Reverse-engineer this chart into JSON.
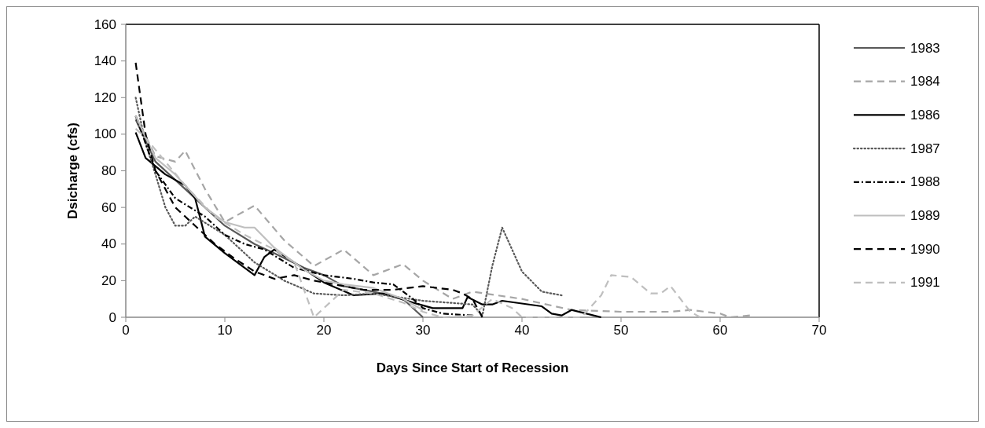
{
  "chart_data": {
    "type": "line",
    "xlabel": "Days Since Start of Recession",
    "ylabel": "Dsicharge (cfs)",
    "xlim": [
      0,
      70
    ],
    "xticks": [
      0,
      10,
      20,
      30,
      40,
      50,
      60,
      70
    ],
    "ylim": [
      0,
      160
    ],
    "yticks": [
      0,
      20,
      40,
      60,
      80,
      100,
      120,
      140,
      160
    ],
    "grid": false,
    "legend": "right",
    "series": [
      {
        "name": "1983",
        "color": "#595959",
        "line_style": "solid",
        "x": [
          1,
          3,
          5,
          8,
          10,
          13,
          15,
          18,
          20,
          22,
          25,
          28,
          30
        ],
        "values": [
          108,
          85,
          75,
          60,
          50,
          40,
          35,
          27,
          23,
          17,
          14,
          10,
          0
        ]
      },
      {
        "name": "1984",
        "color": "#a6a6a6",
        "line_style": "dashed",
        "x": [
          1,
          3,
          5,
          6,
          8,
          10,
          13,
          16,
          19,
          22,
          25,
          28,
          30,
          33,
          35,
          40,
          45,
          50,
          55,
          57,
          60,
          61,
          63
        ],
        "values": [
          110,
          88,
          85,
          91,
          70,
          52,
          61,
          42,
          28,
          37,
          23,
          29,
          20,
          10,
          14,
          10,
          4,
          3,
          3,
          4,
          2,
          0,
          1
        ]
      },
      {
        "name": "1986",
        "color": "#000000",
        "line_style": "solid",
        "x": [
          1,
          2,
          4,
          6,
          7,
          8,
          10,
          13,
          14,
          15,
          17,
          20,
          23,
          26,
          29,
          31,
          34,
          34.5,
          36,
          37,
          38,
          42,
          43,
          44,
          45,
          48
        ],
        "values": [
          101,
          87,
          78,
          72,
          65,
          44,
          35,
          23,
          33,
          37,
          30,
          19,
          12,
          13,
          8,
          5,
          5,
          11,
          7,
          7,
          9,
          6,
          2,
          1,
          4,
          0
        ]
      },
      {
        "name": "1987",
        "color": "#595959",
        "line_style": "dotted",
        "x": [
          1,
          2,
          3,
          4,
          5,
          6,
          7,
          10,
          13,
          16,
          19,
          22,
          25,
          30,
          35,
          36,
          37,
          38,
          40,
          42,
          44
        ],
        "values": [
          120,
          95,
          78,
          60,
          50,
          50,
          55,
          45,
          30,
          20,
          13,
          12,
          13,
          9,
          7,
          1,
          28,
          49,
          25,
          14,
          12
        ]
      },
      {
        "name": "1988",
        "color": "#000000",
        "line_style": "dashdot",
        "x": [
          1,
          3,
          5,
          8,
          10,
          12,
          14,
          17,
          20,
          23,
          25,
          27,
          29,
          30,
          32,
          35
        ],
        "values": [
          110,
          80,
          65,
          55,
          45,
          40,
          37,
          27,
          23,
          21,
          19,
          18,
          10,
          5,
          2,
          1
        ]
      },
      {
        "name": "1989",
        "color": "#bfbfbf",
        "line_style": "solid",
        "x": [
          1,
          3,
          5,
          8,
          10,
          12,
          13,
          15,
          18,
          20,
          22,
          25,
          28,
          30
        ],
        "values": [
          110,
          87,
          78,
          60,
          52,
          49,
          49,
          38,
          26,
          20,
          18,
          16,
          10,
          4
        ]
      },
      {
        "name": "1990",
        "color": "#000000",
        "line_style": "dashed",
        "x": [
          1,
          2,
          3,
          5,
          7,
          9,
          11,
          13,
          15,
          17,
          19,
          21,
          24,
          27,
          30,
          33,
          34,
          35,
          36
        ],
        "values": [
          139,
          100,
          80,
          60,
          50,
          40,
          32,
          25,
          21,
          23,
          20,
          18,
          15,
          15,
          17,
          15,
          13,
          10,
          0
        ]
      },
      {
        "name": "1991",
        "color": "#bfbfbf",
        "line_style": "dashed",
        "x": [
          1,
          2,
          4,
          6,
          9,
          12,
          15,
          17,
          18,
          19,
          20,
          22,
          25,
          28,
          30,
          32,
          35,
          37,
          39,
          40,
          46,
          48,
          49,
          51,
          53,
          54,
          55,
          57,
          58
        ],
        "values": [
          103,
          98,
          85,
          72,
          55,
          45,
          37,
          30,
          15,
          0,
          5,
          15,
          13,
          8,
          3,
          0,
          1,
          10,
          5,
          0,
          0,
          12,
          23,
          22,
          13,
          13,
          17,
          3,
          0
        ]
      }
    ]
  }
}
